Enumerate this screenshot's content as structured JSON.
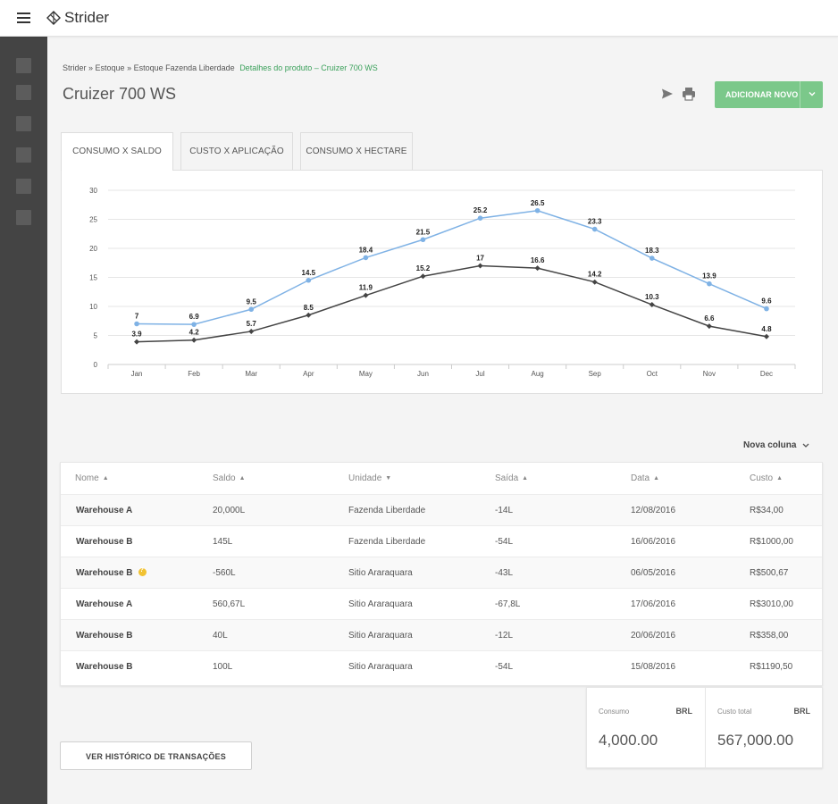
{
  "app": {
    "name": "Strider"
  },
  "breadcrumb": {
    "items": [
      "Strider »",
      "Estoque",
      "» Estoque Fazenda Liberdade"
    ],
    "active": "Detalhes do produto – Cruizer 700 WS"
  },
  "page": {
    "title": "Cruizer 700 WS"
  },
  "toolbar": {
    "add_label": "ADICIONAR NOVO"
  },
  "tabs": [
    {
      "label": "CONSUMO X SALDO",
      "active": true
    },
    {
      "label": "CUSTO X APLICAÇÃO",
      "active": false
    },
    {
      "label": "CONSUMO X HECTARE",
      "active": false
    }
  ],
  "colors": {
    "accent": "#7bc88a",
    "series_blue": "#7fb2e5",
    "series_dark": "#444444",
    "warning": "#f1c232",
    "sidebar": "#444444"
  },
  "chart_data": {
    "type": "line",
    "categories": [
      "Jan",
      "Feb",
      "Mar",
      "Apr",
      "May",
      "Jun",
      "Jul",
      "Aug",
      "Sep",
      "Oct",
      "Nov",
      "Dec"
    ],
    "series": [
      {
        "values": [
          7,
          6.9,
          9.5,
          14.5,
          18.4,
          21.5,
          25.2,
          26.5,
          23.3,
          18.3,
          13.9,
          9.6
        ]
      },
      {
        "values": [
          3.9,
          4.2,
          5.7,
          8.5,
          11.9,
          15.2,
          17,
          16.6,
          14.2,
          10.3,
          6.6,
          4.8
        ]
      }
    ],
    "yticks": [
      0,
      5,
      10,
      15,
      20,
      25,
      30
    ],
    "ylim": [
      0,
      30
    ],
    "grid": true
  },
  "table": {
    "new_column_label": "Nova coluna",
    "headers": [
      "Nome",
      "Saldo",
      "Unidade",
      "Saída",
      "Data",
      "Custo"
    ],
    "rows": [
      {
        "name": "Warehouse A",
        "saldo": "20,000L",
        "unidade": "Fazenda Liberdade",
        "saida": "-14L",
        "data": "12/08/2016",
        "custo": "R$34,00",
        "warning": false
      },
      {
        "name": "Warehouse B",
        "saldo": "145L",
        "unidade": "Fazenda Liberdade",
        "saida": "-54L",
        "data": "16/06/2016",
        "custo": "R$1000,00",
        "warning": false
      },
      {
        "name": "Warehouse B",
        "saldo": "-560L",
        "unidade": "Sitio Araraquara",
        "saida": "-43L",
        "data": "06/05/2016",
        "custo": "R$500,67",
        "warning": true
      },
      {
        "name": "Warehouse A",
        "saldo": "560,67L",
        "unidade": "Sitio Araraquara",
        "saida": "-67,8L",
        "data": "17/06/2016",
        "custo": "R$3010,00",
        "warning": false
      },
      {
        "name": "Warehouse B",
        "saldo": "40L",
        "unidade": "Sitio Araraquara",
        "saida": "-12L",
        "data": "20/06/2016",
        "custo": "R$358,00",
        "warning": false
      },
      {
        "name": "Warehouse B",
        "saldo": "100L",
        "unidade": "Sitio Araraquara",
        "saida": "-54L",
        "data": "15/08/2016",
        "custo": "R$1190,50",
        "warning": false
      }
    ]
  },
  "totals": {
    "consumo": {
      "label": "Consumo",
      "currency": "BRL",
      "value": "4,000.00"
    },
    "custo_total": {
      "label": "Custo total",
      "currency": "BRL",
      "value": "567,000.00"
    }
  },
  "history_button": {
    "label": "VER HISTÓRICO DE TRANSAÇÕES"
  }
}
